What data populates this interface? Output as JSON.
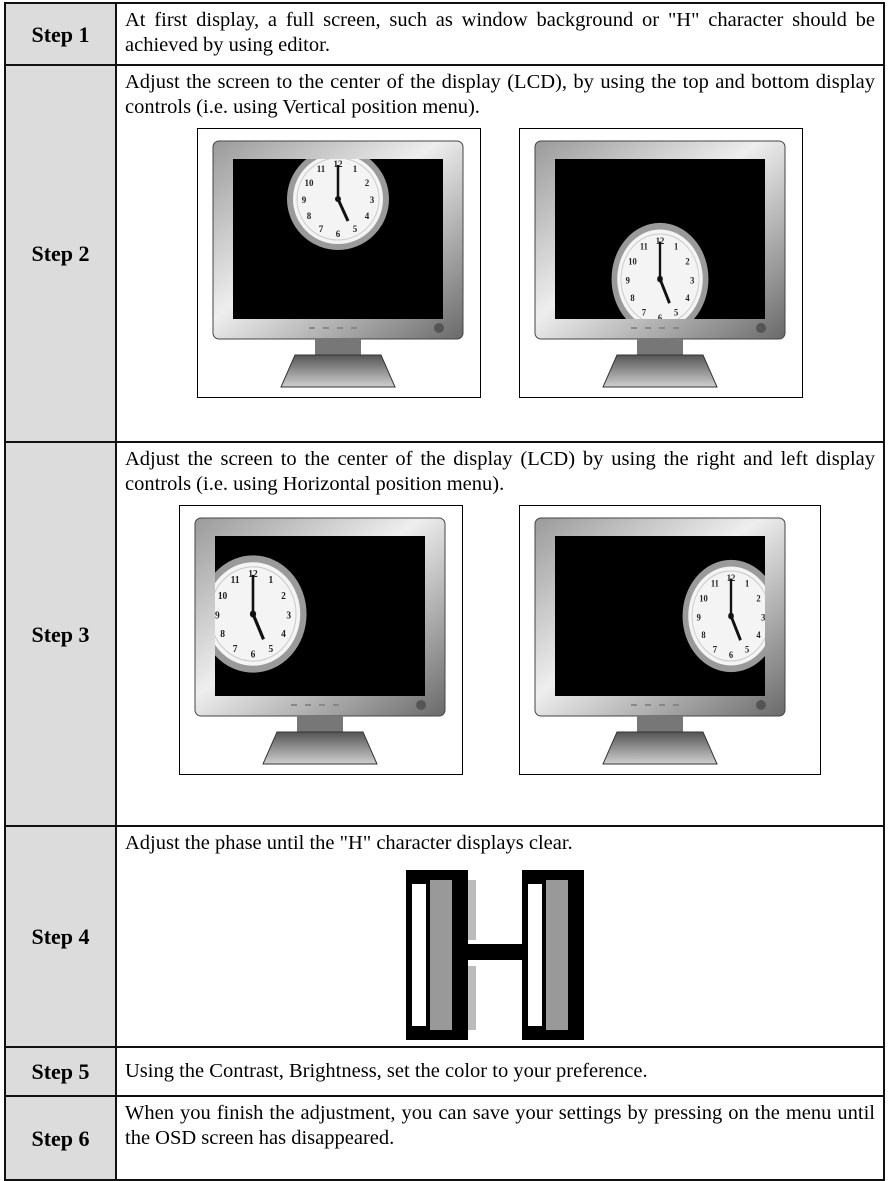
{
  "steps": [
    {
      "label": "Step 1",
      "text": "At first display, a full screen, such as window background or \"H\" character should be achieved by using editor."
    },
    {
      "label": "Step 2",
      "text": "Adjust the screen to the center of the display (LCD), by using the top and bottom display controls (i.e. using Vertical position menu)."
    },
    {
      "label": "Step 3",
      "text": "Adjust the screen to the center of the display (LCD) by using the right and left display controls (i.e. using Horizontal position menu)."
    },
    {
      "label": "Step 4",
      "text": "Adjust the phase until the \"H\" character displays clear."
    },
    {
      "label": "Step 5",
      "text": "Using the Contrast, Brightness, set the color to your preference."
    },
    {
      "label": "Step 6",
      "text": "When you finish the adjustment, you can save your settings by pressing on the menu until the OSD screen has disappeared."
    }
  ]
}
